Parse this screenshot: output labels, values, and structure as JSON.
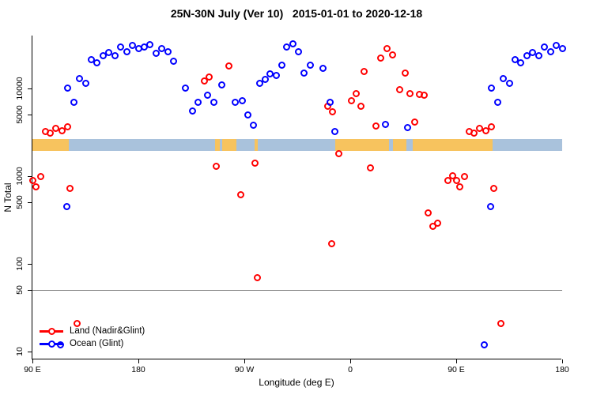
{
  "title": "25N-30N July (Ver 10)   2015-01-01 to 2020-12-18",
  "chart_data": {
    "type": "scatter",
    "title": "25N-30N July (Ver 10)   2015-01-01 to 2020-12-18",
    "xlabel": "Longitude (deg E)",
    "ylabel": "N Total",
    "x_axis": {
      "start_deg": 90,
      "end_deg": 540,
      "ticks": [
        {
          "deg": 90,
          "label": "90 E"
        },
        {
          "deg": 180,
          "label": "180"
        },
        {
          "deg": 270,
          "label": "90 W"
        },
        {
          "deg": 360,
          "label": "0"
        },
        {
          "deg": 450,
          "label": "90 E"
        },
        {
          "deg": 540,
          "label": "180"
        }
      ]
    },
    "y_axis": {
      "scale": "log",
      "range": [
        8,
        40000
      ],
      "ticks": [
        {
          "value": 10,
          "label": "10"
        },
        {
          "value": 50,
          "label": "50"
        },
        {
          "value": 100,
          "label": "100"
        },
        {
          "value": 500,
          "label": "500"
        },
        {
          "value": 1000,
          "label": "1000"
        },
        {
          "value": 5000,
          "label": "5000"
        },
        {
          "value": 10000,
          "label": "10000"
        }
      ]
    },
    "reference_line_value": 50,
    "reference_line_color": "#7f7f7f",
    "map_strip": {
      "value_center": 2300,
      "land_color": "#F7C35E",
      "ocean_color": "#A9C2DC",
      "segments": [
        {
          "from": 90,
          "to": 121,
          "type": "land"
        },
        {
          "from": 121,
          "to": 245,
          "type": "ocean"
        },
        {
          "from": 245,
          "to": 249,
          "type": "land"
        },
        {
          "from": 249,
          "to": 251.5,
          "type": "ocean"
        },
        {
          "from": 251.5,
          "to": 263,
          "type": "land"
        },
        {
          "from": 263,
          "to": 279,
          "type": "ocean"
        },
        {
          "from": 279,
          "to": 281.5,
          "type": "land"
        },
        {
          "from": 281.5,
          "to": 347,
          "type": "ocean"
        },
        {
          "from": 347,
          "to": 393,
          "type": "land"
        },
        {
          "from": 393,
          "to": 396,
          "type": "ocean"
        },
        {
          "from": 396,
          "to": 408,
          "type": "land"
        },
        {
          "from": 408,
          "to": 413,
          "type": "ocean"
        },
        {
          "from": 413,
          "to": 481,
          "type": "land"
        },
        {
          "from": 481,
          "to": 540,
          "type": "ocean"
        }
      ]
    },
    "legend": [
      {
        "label": "Land (Nadir&Glint)",
        "color": "#FF0000"
      },
      {
        "label": "Ocean (Glint)",
        "color": "#0000FF"
      }
    ],
    "series": [
      {
        "name": "Land (Nadir&Glint)",
        "color": "#FF0000",
        "points": [
          [
            90,
            900
          ],
          [
            93,
            760
          ],
          [
            97,
            1000
          ],
          [
            101,
            3200
          ],
          [
            105,
            3100
          ],
          [
            110,
            3500
          ],
          [
            115,
            3300
          ],
          [
            120,
            3650
          ],
          [
            122,
            730
          ],
          [
            128,
            21
          ],
          [
            236,
            12300
          ],
          [
            240,
            13500
          ],
          [
            246,
            1300
          ],
          [
            257,
            18000
          ],
          [
            267,
            620
          ],
          [
            279,
            1400
          ],
          [
            281,
            70
          ],
          [
            341,
            6300
          ],
          [
            344,
            170
          ],
          [
            345,
            5400
          ],
          [
            350,
            1800
          ],
          [
            361,
            7200
          ],
          [
            365,
            8800
          ],
          [
            369,
            6300
          ],
          [
            372,
            15500
          ],
          [
            377,
            1250
          ],
          [
            382,
            3700
          ],
          [
            386,
            22000
          ],
          [
            391,
            28500
          ],
          [
            396,
            24000
          ],
          [
            402,
            9600
          ],
          [
            407,
            15000
          ],
          [
            411,
            8700
          ],
          [
            415,
            4100
          ],
          [
            419,
            8600
          ],
          [
            423,
            8300
          ],
          [
            426,
            380
          ],
          [
            430,
            270
          ],
          [
            434,
            290
          ],
          [
            443,
            900
          ],
          [
            447,
            1010
          ],
          [
            450,
            900
          ],
          [
            453,
            760
          ],
          [
            457,
            1000
          ],
          [
            461,
            3200
          ],
          [
            465,
            3100
          ],
          [
            470,
            3500
          ],
          [
            475,
            3300
          ],
          [
            480,
            3650
          ],
          [
            482,
            730
          ],
          [
            488,
            21
          ]
        ]
      },
      {
        "name": "Ocean (Glint)",
        "color": "#0000FF",
        "points": [
          [
            114,
            12
          ],
          [
            119,
            450
          ],
          [
            120,
            10200
          ],
          [
            125,
            6900
          ],
          [
            130,
            13000
          ],
          [
            135,
            11500
          ],
          [
            140,
            21500
          ],
          [
            145,
            19500
          ],
          [
            150,
            23500
          ],
          [
            155,
            25500
          ],
          [
            160,
            23500
          ],
          [
            165,
            29500
          ],
          [
            170,
            26500
          ],
          [
            175,
            31000
          ],
          [
            180,
            28500
          ],
          [
            185,
            29500
          ],
          [
            190,
            31500
          ],
          [
            195,
            25000
          ],
          [
            200,
            28500
          ],
          [
            205,
            26500
          ],
          [
            210,
            20500
          ],
          [
            220,
            10100
          ],
          [
            226,
            5500
          ],
          [
            231,
            6900
          ],
          [
            239,
            8450
          ],
          [
            244,
            6900
          ],
          [
            251,
            10900
          ],
          [
            262,
            6900
          ],
          [
            268,
            7200
          ],
          [
            273,
            5000
          ],
          [
            278,
            3800
          ],
          [
            283,
            11500
          ],
          [
            288,
            12800
          ],
          [
            292,
            14800
          ],
          [
            297,
            14000
          ],
          [
            302,
            18500
          ],
          [
            306,
            29500
          ],
          [
            311,
            32000
          ],
          [
            316,
            26500
          ],
          [
            321,
            15000
          ],
          [
            326,
            18500
          ],
          [
            337,
            17000
          ],
          [
            343,
            6900
          ],
          [
            347,
            3200
          ],
          [
            390,
            3900
          ],
          [
            409,
            3600
          ],
          [
            474,
            12
          ],
          [
            479,
            450
          ],
          [
            480,
            10200
          ],
          [
            485,
            6900
          ],
          [
            490,
            13000
          ],
          [
            495,
            11500
          ],
          [
            500,
            21500
          ],
          [
            505,
            19500
          ],
          [
            510,
            23500
          ],
          [
            515,
            25500
          ],
          [
            520,
            23500
          ],
          [
            525,
            29500
          ],
          [
            530,
            26500
          ],
          [
            535,
            31000
          ],
          [
            540,
            28500
          ]
        ]
      }
    ]
  }
}
